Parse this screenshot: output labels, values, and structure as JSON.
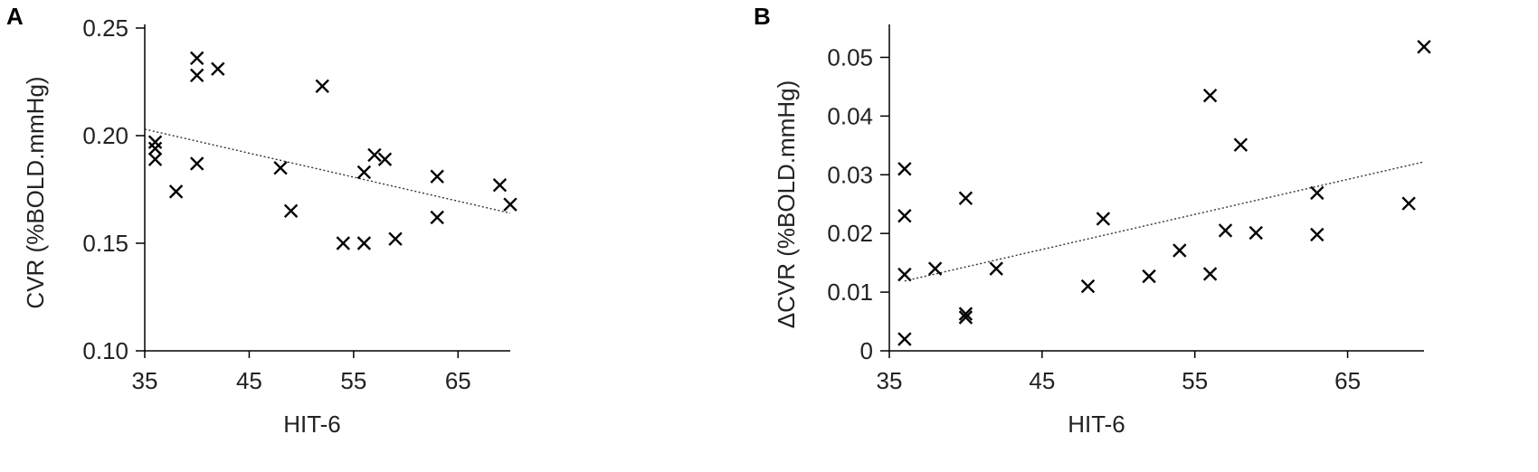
{
  "chart_data": [
    {
      "panel": "A",
      "type": "scatter",
      "xlabel": "HIT-6",
      "ylabel": "CVR (%BOLD.mmHg)",
      "xlim": [
        35,
        70
      ],
      "ylim": [
        0.1,
        0.25
      ],
      "x_ticks": [
        "35",
        "45",
        "55",
        "65"
      ],
      "x_tick_values": [
        35,
        45,
        55,
        65
      ],
      "y_ticks": [
        "0.10",
        "0.15",
        "0.20",
        "0.25"
      ],
      "y_tick_values": [
        0.1,
        0.15,
        0.2,
        0.25
      ],
      "marker": "x",
      "trendline": {
        "style": "dotted",
        "x": [
          35,
          70
        ],
        "y": [
          0.203,
          0.164
        ]
      },
      "points": [
        {
          "x": 36,
          "y": 0.197
        },
        {
          "x": 36,
          "y": 0.194
        },
        {
          "x": 36,
          "y": 0.189
        },
        {
          "x": 38,
          "y": 0.174
        },
        {
          "x": 40,
          "y": 0.236
        },
        {
          "x": 40,
          "y": 0.228
        },
        {
          "x": 40,
          "y": 0.187
        },
        {
          "x": 42,
          "y": 0.231
        },
        {
          "x": 48,
          "y": 0.185
        },
        {
          "x": 49,
          "y": 0.165
        },
        {
          "x": 52,
          "y": 0.223
        },
        {
          "x": 54,
          "y": 0.15
        },
        {
          "x": 56,
          "y": 0.183
        },
        {
          "x": 56,
          "y": 0.15
        },
        {
          "x": 57,
          "y": 0.191
        },
        {
          "x": 58,
          "y": 0.189
        },
        {
          "x": 59,
          "y": 0.152
        },
        {
          "x": 63,
          "y": 0.181
        },
        {
          "x": 63,
          "y": 0.162
        },
        {
          "x": 69,
          "y": 0.177
        },
        {
          "x": 70,
          "y": 0.168
        }
      ]
    },
    {
      "panel": "B",
      "type": "scatter",
      "xlabel": "HIT-6",
      "ylabel": "ΔCVR (%BOLD.mmHg)",
      "xlim": [
        35,
        70
      ],
      "ylim": [
        0,
        0.055
      ],
      "x_ticks": [
        "35",
        "45",
        "55",
        "65"
      ],
      "x_tick_values": [
        35,
        45,
        55,
        65
      ],
      "y_ticks": [
        "0",
        "0.01",
        "0.02",
        "0.03",
        "0.04",
        "0.05"
      ],
      "y_tick_values": [
        0,
        0.01,
        0.02,
        0.03,
        0.04,
        0.05
      ],
      "marker": "x",
      "trendline": {
        "style": "dotted",
        "x": [
          36,
          70
        ],
        "y": [
          0.0119,
          0.0322
        ]
      },
      "points": [
        {
          "x": 36,
          "y": 0.031
        },
        {
          "x": 36,
          "y": 0.023
        },
        {
          "x": 36,
          "y": 0.013
        },
        {
          "x": 36,
          "y": 0.002
        },
        {
          "x": 38,
          "y": 0.014
        },
        {
          "x": 40,
          "y": 0.026
        },
        {
          "x": 40,
          "y": 0.0063
        },
        {
          "x": 40,
          "y": 0.0057
        },
        {
          "x": 42,
          "y": 0.014
        },
        {
          "x": 48,
          "y": 0.011
        },
        {
          "x": 49,
          "y": 0.0225
        },
        {
          "x": 52,
          "y": 0.0127
        },
        {
          "x": 54,
          "y": 0.0171
        },
        {
          "x": 56,
          "y": 0.0435
        },
        {
          "x": 56,
          "y": 0.0131
        },
        {
          "x": 57,
          "y": 0.0205
        },
        {
          "x": 58,
          "y": 0.0351
        },
        {
          "x": 59,
          "y": 0.0201
        },
        {
          "x": 63,
          "y": 0.0269
        },
        {
          "x": 63,
          "y": 0.0198
        },
        {
          "x": 69,
          "y": 0.0251
        },
        {
          "x": 70,
          "y": 0.0518
        }
      ]
    }
  ]
}
